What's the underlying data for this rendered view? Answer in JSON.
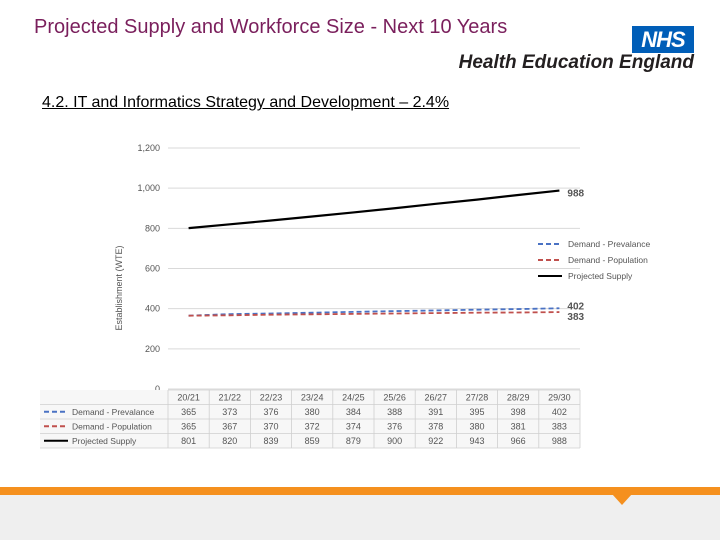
{
  "header": {
    "title": "Projected Supply and Workforce Size - Next 10 Years",
    "logo_text": "NHS",
    "org_name": "Health Education England",
    "subtitle": "4.2. IT and Informatics Strategy and Development – 2.4%"
  },
  "colors": {
    "title": "#7a1f5c",
    "nhs_blue": "#005eb8",
    "footer_orange": "#f5901e"
  },
  "chart_data": {
    "type": "line",
    "ylabel": "Establishment (WTE)",
    "ylim": [
      0,
      1200
    ],
    "yticks": [
      "0",
      "200",
      "400",
      "600",
      "800",
      "1,000",
      "1,200"
    ],
    "grid": true,
    "legend_placement": "right",
    "categories": [
      "20/21",
      "21/22",
      "22/23",
      "23/24",
      "24/25",
      "25/26",
      "26/27",
      "27/28",
      "28/29",
      "29/30"
    ],
    "series": [
      {
        "name": "Demand - Prevalance",
        "color": "#4a72c4",
        "dash": "dashed",
        "values": [
          365,
          373,
          376,
          380,
          384,
          388,
          391,
          395,
          398,
          402
        ],
        "table_values": [
          "365",
          "373",
          "376",
          "380",
          "384",
          "388",
          "391",
          "395",
          "398",
          "402"
        ],
        "end_label": "402"
      },
      {
        "name": "Demand - Population",
        "color": "#c0504d",
        "dash": "dashed",
        "values": [
          365,
          367,
          370,
          372,
          374,
          376,
          378,
          380,
          381,
          383
        ],
        "table_values": [
          "365",
          "367",
          "370",
          "372",
          "374",
          "376",
          "378",
          "380",
          "381",
          "383"
        ],
        "end_label": "383"
      },
      {
        "name": "Projected Supply",
        "color": "#000000",
        "dash": "solid",
        "values": [
          801,
          820,
          839,
          859,
          879,
          900,
          922,
          943,
          966,
          988
        ],
        "table_values": [
          "801",
          "820",
          "839",
          "859",
          "879",
          "900",
          "922",
          "943",
          "966",
          "988"
        ],
        "end_label": "988"
      }
    ]
  }
}
